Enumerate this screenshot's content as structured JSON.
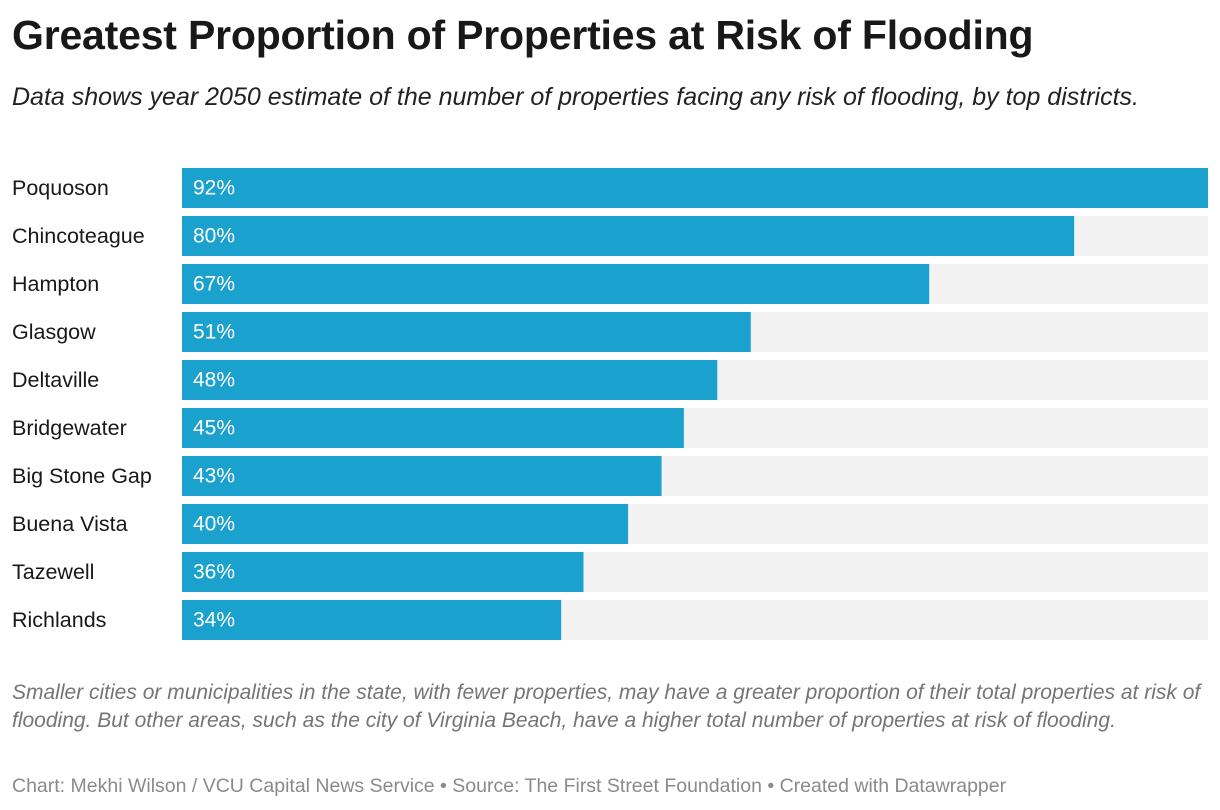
{
  "title": "Greatest Proportion of Properties at Risk of Flooding",
  "subtitle": "Data shows year 2050 estimate of the number of properties facing any risk of flooding, by top districts.",
  "note": "Smaller cities or municipalities in the state, with fewer properties, may have a greater proportion of their total properties at risk of flooding. But other areas, such as the city of Virginia Beach, have a higher total number of properties at risk of flooding.",
  "footer": "Chart: Mekhi Wilson / VCU Capital News Service • Source: The First Street Foundation  • Created with Datawrapper",
  "colors": {
    "bar": "#1ba1cd",
    "track": "#f2f2f2",
    "bar_label": "#ffffff"
  },
  "chart_data": {
    "type": "bar",
    "orientation": "horizontal",
    "categories": [
      "Poquoson",
      "Chincoteague",
      "Hampton",
      "Glasgow",
      "Deltaville",
      "Bridgewater",
      "Big Stone Gap",
      "Buena Vista",
      "Tazewell",
      "Richlands"
    ],
    "values": [
      92,
      80,
      67,
      51,
      48,
      45,
      43,
      40,
      36,
      34
    ],
    "value_labels": [
      "92%",
      "80%",
      "67%",
      "51%",
      "48%",
      "45%",
      "43%",
      "40%",
      "36%",
      "34%"
    ],
    "unit": "%",
    "xlim": [
      0,
      92
    ],
    "grid": false,
    "legend": "none"
  }
}
